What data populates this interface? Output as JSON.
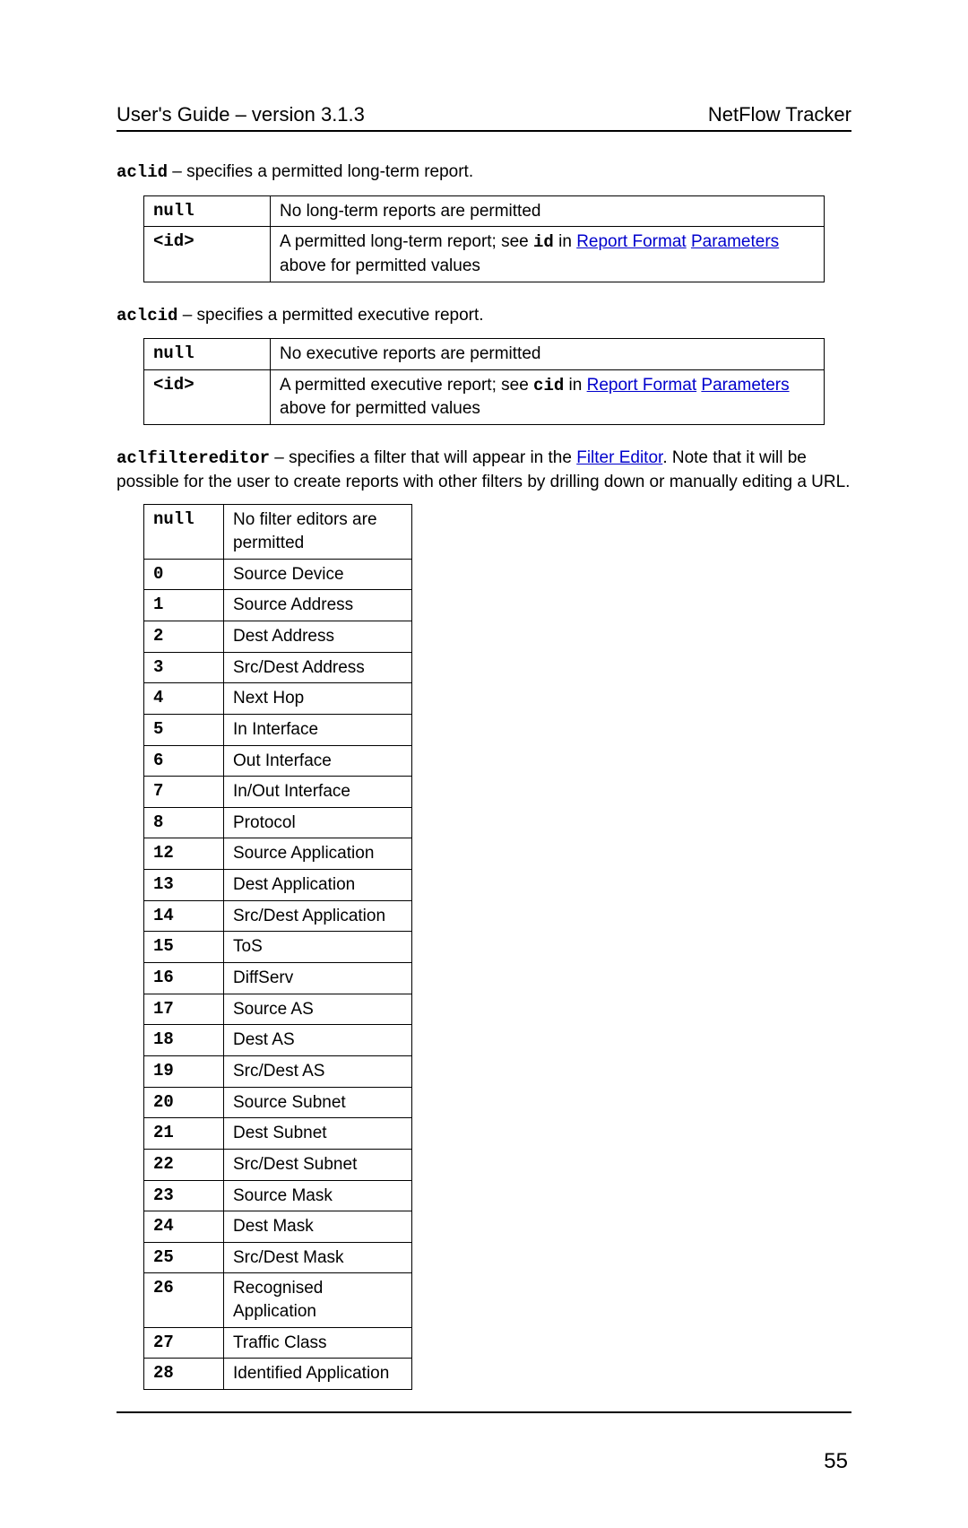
{
  "header": {
    "left": "User's Guide – version 3.1.3",
    "right": "NetFlow Tracker"
  },
  "section_aclid": {
    "code": "aclid",
    "desc": " – specifies a permitted long-term report.",
    "rows": [
      {
        "key": "null",
        "val_pre": "No long-term reports are permitted"
      },
      {
        "key": "<id>",
        "val_pre": "A permitted long-term report; see ",
        "val_code": "id",
        "val_mid": " in ",
        "link1": "Report Format",
        "break": true,
        "link2": "Parameters",
        "val_post": " above for permitted values"
      }
    ]
  },
  "section_aclcid": {
    "code": "aclcid",
    "desc": " – specifies a permitted executive report.",
    "rows": [
      {
        "key": "null",
        "val_pre": "No executive reports are permitted"
      },
      {
        "key": "<id>",
        "val_pre": "A permitted executive report; see ",
        "val_code": "cid",
        "val_mid": " in ",
        "link1": "Report Format",
        "break": true,
        "link2": "Parameters",
        "val_post": " above for permitted values"
      }
    ]
  },
  "section_filter": {
    "code": "aclfiltereditor",
    "desc_pre": " – specifies a filter that will appear in the ",
    "desc_link": "Filter Editor",
    "desc_post": ". Note that it will be possible for the user to create reports with other filters by drilling down or manually editing a URL.",
    "rows": [
      {
        "key": "null",
        "val": "No filter editors are permitted"
      },
      {
        "key": "0",
        "val": "Source Device"
      },
      {
        "key": "1",
        "val": "Source Address"
      },
      {
        "key": "2",
        "val": "Dest Address"
      },
      {
        "key": "3",
        "val": "Src/Dest Address"
      },
      {
        "key": "4",
        "val": "Next Hop"
      },
      {
        "key": "5",
        "val": "In Interface"
      },
      {
        "key": "6",
        "val": "Out Interface"
      },
      {
        "key": "7",
        "val": "In/Out Interface"
      },
      {
        "key": "8",
        "val": "Protocol"
      },
      {
        "key": "12",
        "val": "Source Application"
      },
      {
        "key": "13",
        "val": "Dest Application"
      },
      {
        "key": "14",
        "val": "Src/Dest Application"
      },
      {
        "key": "15",
        "val": "ToS"
      },
      {
        "key": "16",
        "val": "DiffServ"
      },
      {
        "key": "17",
        "val": "Source AS"
      },
      {
        "key": "18",
        "val": "Dest AS"
      },
      {
        "key": "19",
        "val": "Src/Dest AS"
      },
      {
        "key": "20",
        "val": "Source Subnet"
      },
      {
        "key": "21",
        "val": "Dest Subnet"
      },
      {
        "key": "22",
        "val": "Src/Dest Subnet"
      },
      {
        "key": "23",
        "val": "Source Mask"
      },
      {
        "key": "24",
        "val": "Dest Mask"
      },
      {
        "key": "25",
        "val": "Src/Dest Mask"
      },
      {
        "key": "26",
        "val": "Recognised Application"
      },
      {
        "key": "27",
        "val": "Traffic Class"
      },
      {
        "key": "28",
        "val": "Identified Application"
      }
    ]
  },
  "page_number": "55"
}
